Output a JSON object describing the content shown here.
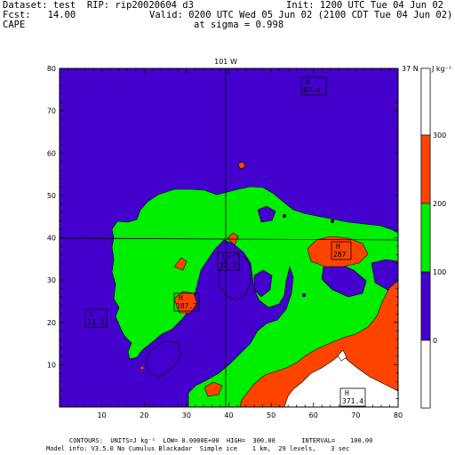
{
  "header": {
    "dataset_line": "Dataset: test  RIP: rip20020604 d3",
    "init_line": "Init: 1200 UTC Tue 04 Jun 02",
    "fcst_line": "Fcst:   14.00",
    "valid_line": "Valid: 0200 UTC Wed 05 Jun 02 (2100 CDT Tue 04 Jun 02)",
    "field_name": "CAPE",
    "level_line": "at sigma = 0.998"
  },
  "map": {
    "lat_label_top": "101 W",
    "lat_label_right": "37 N",
    "x_ticks": [
      "10",
      "20",
      "30",
      "40",
      "50",
      "60",
      "70",
      "80"
    ],
    "y_ticks": [
      "10",
      "20",
      "30",
      "40",
      "50",
      "60",
      "70",
      "80"
    ],
    "extrema": [
      {
        "type": "H",
        "value": "87.4"
      },
      {
        "type": "H",
        "value": "287"
      },
      {
        "type": "L",
        "value": "12.2"
      },
      {
        "type": "H",
        "value": "287.7"
      },
      {
        "type": "L",
        "value": "13.1"
      },
      {
        "type": "H",
        "value": "371.4"
      }
    ],
    "colors": {
      "blue": "#4400cc",
      "green": "#00ee00",
      "orange": "#ff4400",
      "white": "#ffffff"
    }
  },
  "colorbar": {
    "unit": "J kg⁻¹",
    "labels": [
      "300",
      "200",
      "100",
      "0"
    ]
  },
  "footer": {
    "contours_line": "CONTOURS:  UNITS=J kg⁻¹  LOW= 0.0000E+00  HIGH=  300.00       INTERVAL=    100.00",
    "model_line": "Model info: V3.5.0 No Cumulus Blackadar  Simple ice    1 km,  29 levels,    3 sec"
  }
}
